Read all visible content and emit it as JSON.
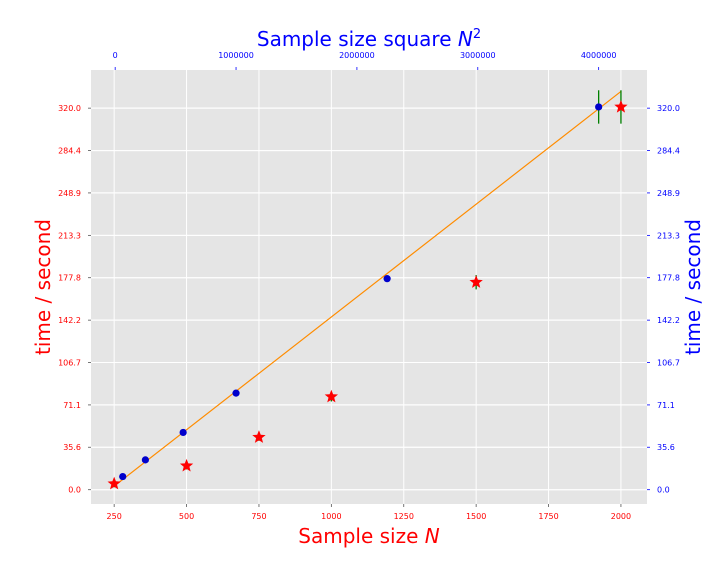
{
  "chart_data": {
    "type": "scatter",
    "title": "",
    "colors": {
      "plot_bg": "#e5e5e5",
      "grid": "#ffffff",
      "fit_line": "#ff8c00",
      "error_bars": "#008000",
      "stars": "#ff0000",
      "dots": "#0000cc",
      "primary_axis": "#ff0000",
      "secondary_axis": "#0000ff"
    },
    "x_bottom": {
      "label": "Sample size N",
      "label_main": "Sample size ",
      "label_var": "N",
      "lim": [
        170,
        2090
      ],
      "ticks": [
        250,
        500,
        750,
        1000,
        1250,
        1500,
        1750,
        2000
      ]
    },
    "x_top": {
      "label": "Sample size square N^2",
      "label_main": "Sample size square ",
      "label_var": "N",
      "label_sup": "2",
      "lim": [
        -200000,
        4400000
      ],
      "ticks": [
        0,
        1000000,
        2000000,
        3000000,
        4000000
      ]
    },
    "y_left": {
      "label": "time / second",
      "lim": [
        -12,
        352
      ],
      "ticks": [
        "0.0",
        "35.6",
        "71.1",
        "106.7",
        "142.2",
        "177.8",
        "213.3",
        "248.9",
        "284.4",
        "320.0"
      ]
    },
    "y_right": {
      "label": "time / second",
      "lim": [
        -12,
        352
      ],
      "ticks": [
        "0.0",
        "35.6",
        "71.1",
        "106.7",
        "142.2",
        "177.8",
        "213.3",
        "248.9",
        "284.4",
        "320.0"
      ]
    },
    "series": [
      {
        "marker": "star",
        "axis": "bottom",
        "points": [
          {
            "x": 250,
            "y": 5,
            "err": 3
          },
          {
            "x": 500,
            "y": 20,
            "err": 3
          },
          {
            "x": 750,
            "y": 44,
            "err": 3
          },
          {
            "x": 1000,
            "y": 78,
            "err": 4
          },
          {
            "x": 1500,
            "y": 174,
            "err": 6
          },
          {
            "x": 2000,
            "y": 321,
            "err": 14
          }
        ]
      },
      {
        "marker": "circle",
        "axis": "top",
        "points": [
          {
            "x": 62500,
            "y": 11
          },
          {
            "x": 250000,
            "y": 25
          },
          {
            "x": 562500,
            "y": 48
          },
          {
            "x": 1000000,
            "y": 81
          },
          {
            "x": 2250000,
            "y": 177
          },
          {
            "x": 4000000,
            "y": 321,
            "err": 14
          }
        ]
      },
      {
        "marker": "line",
        "axis": "bottom",
        "x": [
          250,
          2000
        ],
        "y": [
          3,
          334
        ]
      }
    ],
    "grid": true,
    "legend": "none"
  }
}
